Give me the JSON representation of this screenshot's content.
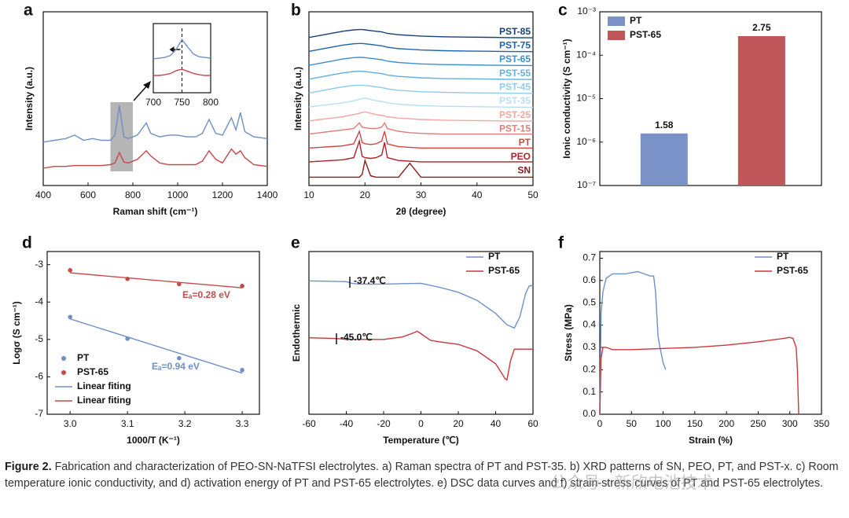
{
  "chart_data": [
    {
      "panel": "a",
      "type": "line",
      "xlabel": "Raman shift (cm⁻¹)",
      "ylabel": "Intensity (a.u.)",
      "xlim": [
        400,
        1400
      ],
      "xticks": [
        400,
        600,
        800,
        1000,
        1200,
        1400
      ],
      "ylim": [
        0,
        10
      ],
      "x": [
        400,
        450,
        500,
        540,
        580,
        620,
        660,
        700,
        720,
        740,
        760,
        780,
        820,
        860,
        880,
        920,
        960,
        1000,
        1040,
        1080,
        1110,
        1140,
        1170,
        1200,
        1240,
        1260,
        1280,
        1300,
        1340,
        1400
      ],
      "series": [
        {
          "color": "#6f8fc6",
          "values": [
            2.5,
            2.6,
            2.7,
            2.9,
            2.6,
            2.7,
            2.6,
            2.6,
            2.9,
            4.6,
            2.8,
            2.7,
            2.9,
            3.6,
            3.0,
            2.8,
            2.9,
            2.9,
            2.8,
            2.8,
            3.0,
            3.8,
            3.0,
            2.9,
            3.9,
            3.2,
            4.2,
            3.1,
            2.8,
            2.7
          ]
        },
        {
          "color": "#c9474b",
          "values": [
            1.0,
            1.1,
            1.1,
            1.15,
            1.15,
            1.15,
            1.15,
            1.2,
            1.3,
            1.9,
            1.35,
            1.3,
            1.5,
            2.0,
            1.7,
            1.3,
            1.2,
            1.2,
            1.2,
            1.2,
            1.4,
            2.0,
            1.5,
            1.3,
            2.1,
            1.8,
            2.0,
            1.6,
            1.2,
            1.1
          ]
        }
      ]
    },
    {
      "type": "line",
      "xlim": [
        700,
        800
      ],
      "xticks": [
        700,
        750,
        800
      ],
      "ylim": [
        0,
        10
      ],
      "x": [
        700,
        710,
        720,
        730,
        740,
        750,
        760,
        770,
        780,
        790,
        800
      ],
      "series": [
        {
          "color": "#6f8fc6",
          "values": [
            4.9,
            5.0,
            5.1,
            5.4,
            6.3,
            7.7,
            6.6,
            5.6,
            5.2,
            5.1,
            5.0
          ]
        },
        {
          "color": "#c9474b",
          "values": [
            2.5,
            2.5,
            2.6,
            2.8,
            3.2,
            3.4,
            3.1,
            2.8,
            2.6,
            2.5,
            2.5
          ]
        }
      ]
    },
    {
      "panel": "b",
      "type": "line",
      "stacked": true,
      "xlabel": "2θ (degree)",
      "ylabel": "Intensity (a.u.)",
      "xlim": [
        10,
        50
      ],
      "xticks": [
        10,
        20,
        30,
        40,
        50
      ],
      "ylim": [
        0,
        12.5
      ],
      "x": [
        10,
        12,
        14,
        16,
        18,
        19,
        19.5,
        20,
        21,
        22,
        23,
        23.5,
        24,
        26,
        28,
        30,
        34,
        38,
        42,
        46,
        50
      ],
      "series": [
        {
          "name": "SN",
          "color": "#8b1a1a",
          "values": [
            0,
            0,
            0,
            0,
            0,
            0,
            0.2,
            1.2,
            0.1,
            0,
            0,
            0,
            0,
            0,
            1.0,
            0,
            0,
            0,
            0,
            0,
            0
          ]
        },
        {
          "name": "PEO",
          "color": "#b21f24",
          "values": [
            0.1,
            0.15,
            0.2,
            0.25,
            0.4,
            1.6,
            0.5,
            0.4,
            0.35,
            0.4,
            0.6,
            1.5,
            0.4,
            0.2,
            0.15,
            0.1,
            0.1,
            0.1,
            0.1,
            0.1,
            0.1
          ]
        },
        {
          "name": "PT",
          "color": "#d1453f",
          "values": [
            0.1,
            0.15,
            0.2,
            0.25,
            0.4,
            1.3,
            0.5,
            0.4,
            0.35,
            0.4,
            0.6,
            1.3,
            0.4,
            0.2,
            0.15,
            0.1,
            0.1,
            0.1,
            0.1,
            0.1,
            0.1
          ]
        },
        {
          "name": "PST-15",
          "color": "#e37b78",
          "values": [
            0.1,
            0.2,
            0.3,
            0.4,
            0.5,
            0.9,
            0.6,
            0.55,
            0.5,
            0.5,
            0.6,
            0.9,
            0.5,
            0.3,
            0.2,
            0.15,
            0.1,
            0.1,
            0.1,
            0.1,
            0.1
          ]
        },
        {
          "name": "PST-25",
          "color": "#f0a7a2",
          "values": [
            0.05,
            0.15,
            0.25,
            0.35,
            0.5,
            0.6,
            0.65,
            0.7,
            0.6,
            0.5,
            0.45,
            0.4,
            0.35,
            0.25,
            0.2,
            0.15,
            0.1,
            0.08,
            0.06,
            0.04,
            0.03
          ]
        },
        {
          "name": "PST-35",
          "color": "#b9def2",
          "values": [
            0.05,
            0.15,
            0.25,
            0.35,
            0.5,
            0.6,
            0.65,
            0.7,
            0.6,
            0.5,
            0.45,
            0.4,
            0.35,
            0.25,
            0.2,
            0.15,
            0.1,
            0.08,
            0.06,
            0.04,
            0.03
          ]
        },
        {
          "name": "PST-45",
          "color": "#8fcbec",
          "values": [
            0.05,
            0.2,
            0.35,
            0.5,
            0.6,
            0.62,
            0.62,
            0.6,
            0.55,
            0.5,
            0.45,
            0.4,
            0.35,
            0.25,
            0.2,
            0.15,
            0.1,
            0.08,
            0.06,
            0.04,
            0.03
          ]
        },
        {
          "name": "PST-55",
          "color": "#5fb0e0",
          "values": [
            0.05,
            0.2,
            0.35,
            0.5,
            0.6,
            0.62,
            0.62,
            0.6,
            0.55,
            0.5,
            0.45,
            0.4,
            0.35,
            0.25,
            0.2,
            0.15,
            0.1,
            0.08,
            0.06,
            0.04,
            0.03
          ]
        },
        {
          "name": "PST-65",
          "color": "#3a8fcf",
          "values": [
            0.05,
            0.2,
            0.35,
            0.5,
            0.6,
            0.62,
            0.62,
            0.6,
            0.55,
            0.5,
            0.45,
            0.4,
            0.35,
            0.25,
            0.2,
            0.15,
            0.1,
            0.08,
            0.06,
            0.04,
            0.03
          ]
        },
        {
          "name": "PST-75",
          "color": "#1f63a8",
          "values": [
            0.05,
            0.2,
            0.35,
            0.5,
            0.6,
            0.62,
            0.62,
            0.6,
            0.55,
            0.5,
            0.45,
            0.4,
            0.35,
            0.25,
            0.2,
            0.15,
            0.1,
            0.08,
            0.06,
            0.04,
            0.03
          ]
        },
        {
          "name": "PST-85",
          "color": "#173f78",
          "values": [
            0.05,
            0.2,
            0.35,
            0.5,
            0.6,
            0.62,
            0.62,
            0.6,
            0.55,
            0.5,
            0.45,
            0.4,
            0.35,
            0.25,
            0.2,
            0.15,
            0.1,
            0.08,
            0.06,
            0.04,
            0.03
          ]
        }
      ]
    },
    {
      "panel": "c",
      "type": "bar",
      "log_y": true,
      "ylabel": "Ionic conductivity (S cm⁻¹)",
      "legend": "upper left",
      "ylim": [
        1e-07,
        0.001
      ],
      "yticks": [
        {
          "value": 1e-07,
          "label": "10⁻⁷"
        },
        {
          "value": 1e-06,
          "label": "10⁻⁶"
        },
        {
          "value": 1e-05,
          "label": "10⁻⁵"
        },
        {
          "value": 0.0001,
          "label": "10⁻⁴"
        },
        {
          "value": 0.001,
          "label": "10⁻³"
        }
      ],
      "series": [
        {
          "name": "PT",
          "color": "#7b92c8",
          "values": [
            1.58e-06
          ],
          "value_labels": [
            "1.58"
          ]
        },
        {
          "name": "PST-65",
          "color": "#c0555a",
          "values": [
            0.000275
          ],
          "value_labels": [
            "2.75"
          ]
        }
      ]
    },
    {
      "panel": "d",
      "type": "scatter",
      "xlabel": "1000/T (K⁻¹)",
      "ylabel": "Logσ (S cm⁻¹)",
      "legend": "lower left",
      "xlim": [
        2.96,
        3.33
      ],
      "xticks": [
        {
          "value": 3,
          "label": "3.0"
        },
        3.1,
        3.2,
        3.3
      ],
      "ylim": [
        -7,
        -2.65
      ],
      "yticks": [
        -3,
        -4,
        -5,
        -6,
        -7
      ],
      "series": [
        {
          "name": "PT",
          "color": "#6f8fc9",
          "marker": "point",
          "x": [
            3.0,
            3.1,
            3.19,
            3.3
          ],
          "values": [
            -4.4,
            -4.98,
            -5.5,
            -5.82
          ]
        },
        {
          "name": "PST-65",
          "color": "#c74a4a",
          "marker": "point",
          "x": [
            3.0,
            3.1,
            3.19,
            3.3
          ],
          "values": [
            -3.15,
            -3.38,
            -3.52,
            -3.57
          ]
        },
        {
          "name": "Linear fiting",
          "color": "#6f8fc9",
          "marker": "line",
          "x": [
            3.0,
            3.3
          ],
          "values": [
            -4.45,
            -5.9
          ]
        },
        {
          "name": "Linear fiting",
          "color": "#c74a4a",
          "marker": "line",
          "x": [
            3.0,
            3.3
          ],
          "values": [
            -3.22,
            -3.62
          ]
        }
      ],
      "annotations": [
        {
          "text": "Eₐ=0.28 eV",
          "color": "#c74a4a"
        },
        {
          "text": "Eₐ=0.94 eV",
          "color": "#6f8fc9"
        }
      ]
    },
    {
      "panel": "e",
      "type": "line",
      "xlabel": "Temperature (℃)",
      "ylabel": "Endothermic",
      "legend": "upper right",
      "xlim": [
        -60,
        60
      ],
      "xticks": [
        -60,
        -40,
        -20,
        0,
        20,
        40,
        60
      ],
      "ylim": [
        0,
        10
      ],
      "series": [
        {
          "name": "PT",
          "color": "#6f8fc9",
          "x": [
            -60,
            -40,
            -37,
            -33,
            -20,
            0,
            10,
            20,
            30,
            40,
            46,
            50,
            53,
            56,
            58,
            60
          ],
          "values": [
            8.2,
            8.15,
            8.05,
            8.0,
            8.0,
            8.05,
            7.8,
            7.5,
            7.0,
            6.2,
            5.5,
            5.3,
            6.0,
            7.4,
            7.9,
            7.9
          ]
        },
        {
          "name": "PST-65",
          "color": "#c9373d",
          "x": [
            -60,
            -45,
            -40,
            -20,
            -10,
            -4,
            -2,
            0,
            5,
            10,
            20,
            30,
            40,
            45,
            46,
            48,
            50,
            55,
            60
          ],
          "values": [
            4.7,
            4.65,
            4.6,
            4.6,
            4.75,
            5.0,
            5.1,
            4.95,
            4.55,
            4.45,
            4.3,
            3.9,
            3.1,
            2.2,
            2.1,
            3.3,
            4.0,
            4.0,
            4.0
          ]
        }
      ],
      "annotations": [
        {
          "text": "-37.4℃"
        },
        {
          "text": "-45.0℃"
        }
      ]
    },
    {
      "panel": "f",
      "type": "line",
      "xlabel": "Strain (%)",
      "ylabel": "Stress (MPa)",
      "legend": "upper right",
      "xlim": [
        0,
        350
      ],
      "xticks": [
        0,
        50,
        100,
        150,
        200,
        250,
        300,
        350
      ],
      "ylim": [
        0,
        0.73
      ],
      "yticks": [
        {
          "value": 0,
          "label": "0.0"
        },
        0.1,
        0.2,
        0.3,
        0.4,
        0.5,
        0.6,
        0.7
      ],
      "series": [
        {
          "name": "PT",
          "color": "#6f8fc9",
          "x": [
            0,
            2,
            5,
            10,
            20,
            30,
            40,
            50,
            60,
            70,
            80,
            85,
            88,
            90,
            92,
            95,
            100,
            104
          ],
          "values": [
            0,
            0.45,
            0.55,
            0.61,
            0.63,
            0.63,
            0.63,
            0.635,
            0.64,
            0.63,
            0.62,
            0.62,
            0.55,
            0.45,
            0.35,
            0.3,
            0.23,
            0.2
          ]
        },
        {
          "name": "PST-65",
          "color": "#c9373d",
          "x": [
            0,
            2,
            5,
            10,
            20,
            50,
            100,
            150,
            200,
            250,
            290,
            300,
            305,
            310,
            312,
            313,
            314
          ],
          "values": [
            0,
            0.25,
            0.3,
            0.3,
            0.29,
            0.29,
            0.295,
            0.3,
            0.31,
            0.325,
            0.34,
            0.345,
            0.34,
            0.3,
            0.2,
            0.1,
            0
          ]
        }
      ]
    }
  ],
  "caption": {
    "label": "Figure 2.",
    "text": "Fabrication and characterization of PEO-SN-NaTFSI electrolytes. a) Raman spectra of PT and PST-35. b) XRD patterns of SN, PEO, PT, and PST-x. c) Room temperature ionic conductivity, and d) activation energy of PT and PST-65 electrolytes. e) DSC data curves and f) strain-stress curves of PT and PST-65 electrolytes."
  },
  "watermark": "公众号 · 新欣电池技术"
}
